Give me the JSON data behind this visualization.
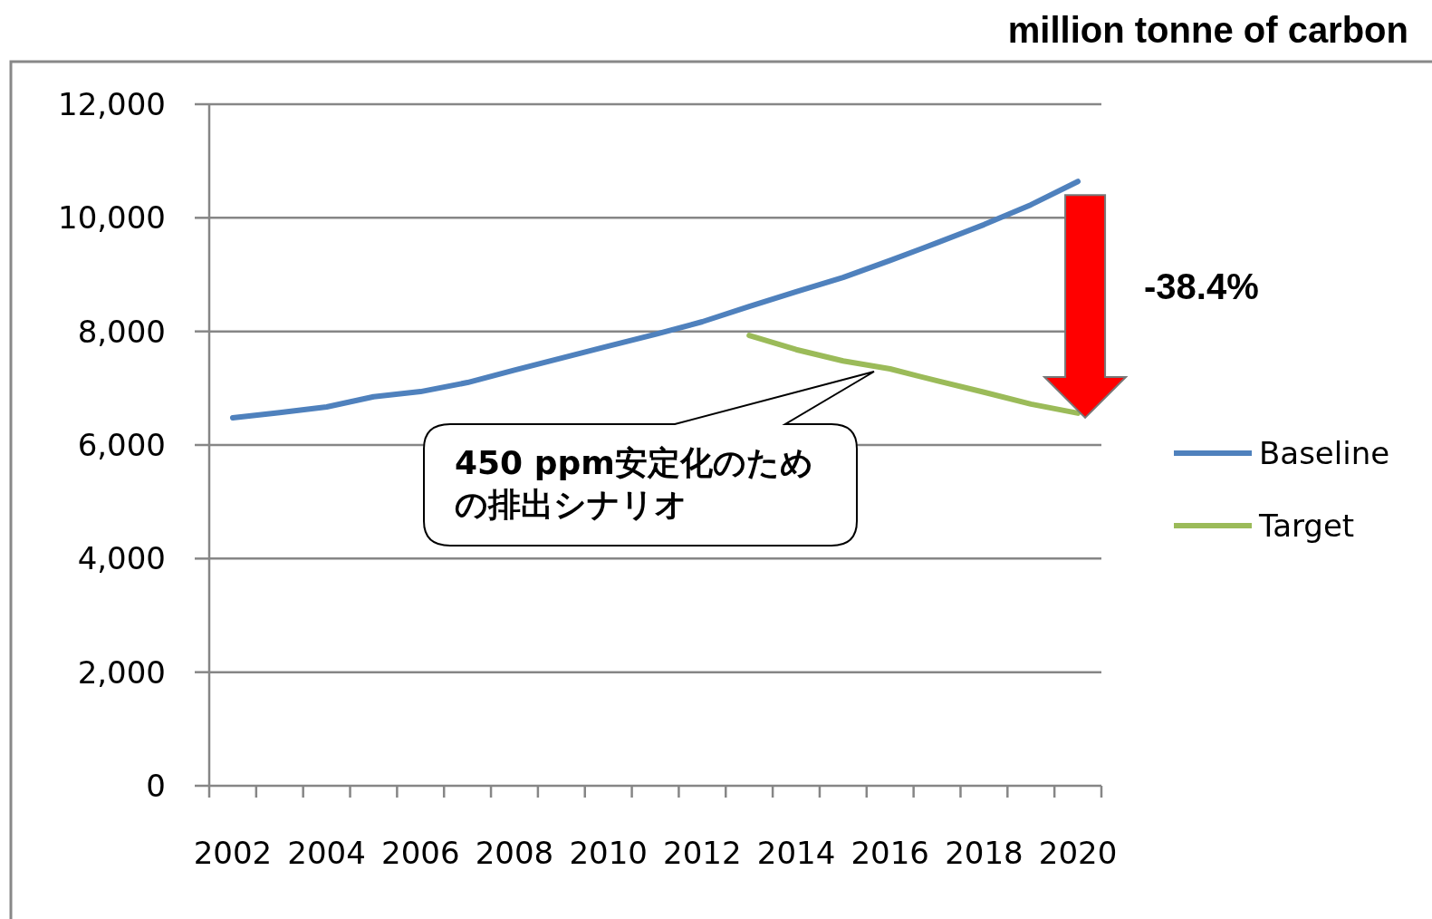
{
  "chart_data": {
    "type": "line",
    "ylabel": "million tonne of carbon",
    "categories": [
      "2002",
      null,
      "2004",
      null,
      "2006",
      null,
      "2008",
      null,
      "2010",
      null,
      "2012",
      null,
      "2014",
      null,
      "2016",
      null,
      "2018",
      null,
      "2020"
    ],
    "series": [
      {
        "name": "Baseline",
        "color": "#4f81bd",
        "values": [
          6480,
          6570,
          6670,
          6850,
          6940,
          7100,
          7320,
          7530,
          7740,
          7950,
          8170,
          8440,
          8700,
          8950,
          9250,
          9560,
          9880,
          10230,
          10640
        ]
      },
      {
        "name": "Target",
        "color": "#9bbb59",
        "values": [
          null,
          null,
          null,
          null,
          null,
          null,
          null,
          null,
          null,
          null,
          null,
          7930,
          7680,
          7480,
          7340,
          7130,
          6930,
          6720,
          6560
        ]
      }
    ],
    "ylim": [
      0,
      12000
    ],
    "yticks": [
      {
        "value": 0,
        "label": "0"
      },
      {
        "value": 2000,
        "label": "2,000"
      },
      {
        "value": 4000,
        "label": "4,000"
      },
      {
        "value": 6000,
        "label": "6,000"
      },
      {
        "value": 8000,
        "label": "8,000"
      },
      {
        "value": 10000,
        "label": "10,000"
      },
      {
        "value": 12000,
        "label": "12,000"
      }
    ],
    "grid": "y",
    "legend": "right",
    "annotations": [
      "-38.4%",
      "450 ppm安定化のための排出シナリオ"
    ]
  }
}
